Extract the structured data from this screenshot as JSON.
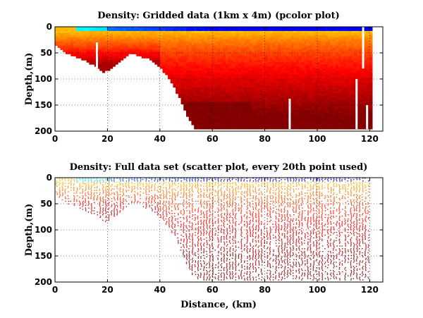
{
  "chart_data": [
    {
      "type": "heatmap",
      "title": "Density: Gridded data (1km x 4m) (pcolor plot)",
      "ylabel": "Depth,(m)",
      "xlabel": "",
      "xlim": [
        0,
        125
      ],
      "ylim": [
        200,
        0
      ],
      "y_reversed": true,
      "xticks": [
        0,
        20,
        40,
        60,
        80,
        100,
        120
      ],
      "yticks": [
        0,
        50,
        100,
        150,
        200
      ],
      "grid": true,
      "colormap": "jet",
      "grid_resolution": {
        "dx_km": 1,
        "dz_m": 4
      },
      "bottom_profile": {
        "x": [
          0,
          2,
          5,
          8,
          12,
          16,
          18,
          20,
          24,
          28,
          30,
          32,
          36,
          40,
          44,
          48,
          50,
          52,
          54,
          60,
          100,
          118,
          121
        ],
        "depth": [
          30,
          40,
          50,
          55,
          65,
          75,
          85,
          82,
          70,
          50,
          48,
          55,
          60,
          75,
          100,
          140,
          165,
          185,
          196,
          196,
          196,
          196,
          196
        ]
      },
      "data_gaps": [
        {
          "x": 16,
          "depth": [
            30,
            80
          ]
        },
        {
          "x": 89.5,
          "depth": [
            138,
            196
          ]
        },
        {
          "x": 115,
          "depth": [
            100,
            196
          ]
        },
        {
          "x": 117.5,
          "depth": [
            0,
            80
          ]
        },
        {
          "x": 119,
          "depth": [
            150,
            196
          ]
        }
      ],
      "density_field": {
        "surface_value": 0.0,
        "deep_value": 1.0,
        "note_levels": "normalized colour index: 0 = blue (light water), 1 = dark red (dense water)"
      }
    },
    {
      "type": "scatter",
      "title": "Density: Full data set (scatter plot, every 20th point used)",
      "ylabel": "Depth,(m)",
      "xlabel": "Distance, (km)",
      "xlim": [
        0,
        125
      ],
      "ylim": [
        200,
        0
      ],
      "y_reversed": true,
      "xticks": [
        0,
        20,
        40,
        60,
        80,
        100,
        120
      ],
      "yticks": [
        0,
        50,
        100,
        150,
        200
      ],
      "grid": true,
      "colormap": "jet",
      "bottom_profile": {
        "x": [
          0,
          2,
          5,
          8,
          12,
          16,
          18,
          20,
          24,
          28,
          30,
          32,
          36,
          40,
          44,
          48,
          50,
          52,
          54,
          60,
          100,
          118,
          120
        ],
        "depth": [
          30,
          40,
          50,
          55,
          65,
          75,
          85,
          82,
          70,
          50,
          48,
          55,
          60,
          75,
          100,
          140,
          165,
          185,
          196,
          196,
          196,
          196,
          196
        ]
      },
      "sampling": "every 20th point"
    }
  ]
}
